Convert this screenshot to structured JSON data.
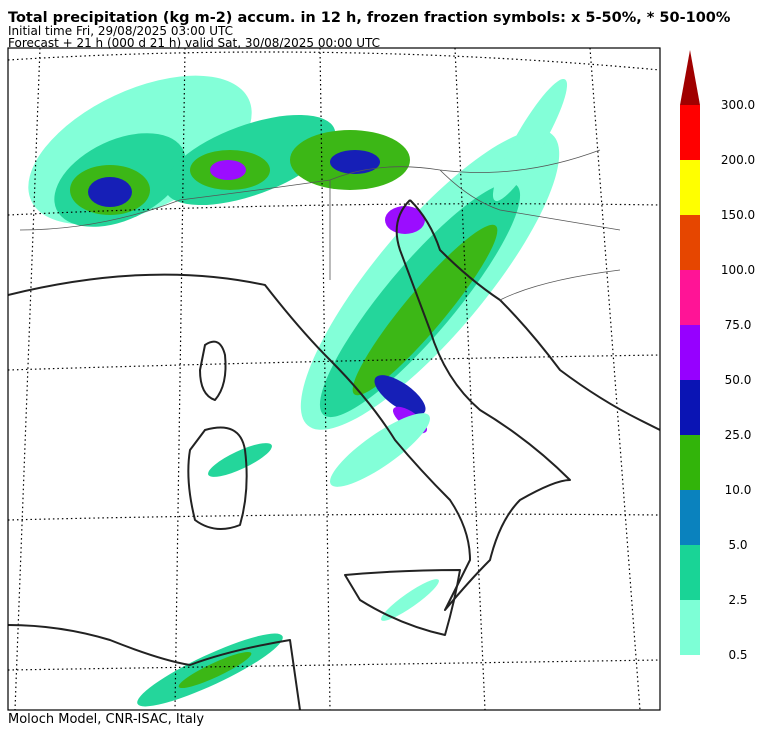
{
  "header": {
    "title": "Total precipitation (kg m-2) accum. in 12 h, frozen fraction symbols: x 5-50%, * 50-100%",
    "initial_time": "Initial time  Fri, 29/08/2025  03:00 UTC",
    "forecast": "Forecast  +  21 h  (000 d 21 h)  valid Sat, 30/08/2025 00:00 UTC"
  },
  "colorbar": {
    "levels": [
      {
        "label": "0.5",
        "color": "#7dffd6"
      },
      {
        "label": "2.5",
        "color": "#19d496"
      },
      {
        "label": "5.0",
        "color": "#0a82be"
      },
      {
        "label": "10.0",
        "color": "#32b40a"
      },
      {
        "label": "25.0",
        "color": "#0a14b4"
      },
      {
        "label": "50.0",
        "color": "#9600ff"
      },
      {
        "label": "75.0",
        "color": "#ff1496"
      },
      {
        "label": "100.0",
        "color": "#e64600"
      },
      {
        "label": "150.0",
        "color": "#ffff00"
      },
      {
        "label": "200.0",
        "color": "#ff0000"
      },
      {
        "label": "300.0",
        "color": "#a00000"
      }
    ]
  },
  "footer": "Moloch Model, CNR-ISAC, Italy"
}
